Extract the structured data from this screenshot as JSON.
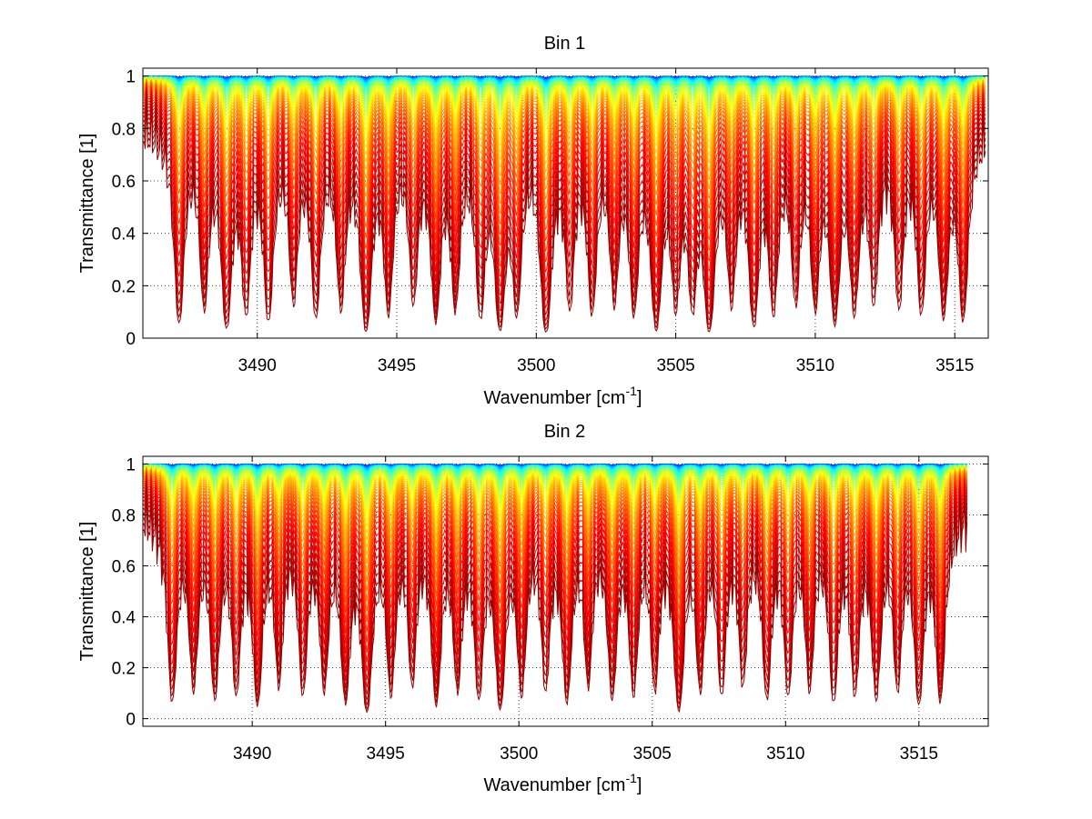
{
  "figure": {
    "colormap": "jet"
  },
  "chart_data": [
    {
      "type": "line",
      "title": "Bin 1",
      "xlabel": "Wavenumber [cm",
      "xlabel_sup": "-1",
      "xlabel_close": "]",
      "ylabel": "Transmittance [1]",
      "xlim": [
        3485.9,
        3516.2
      ],
      "ylim": [
        0,
        1.03
      ],
      "xticks": [
        3490,
        3495,
        3500,
        3505,
        3510,
        3515
      ],
      "yticks": [
        0,
        0.2,
        0.4,
        0.6,
        0.8,
        1
      ],
      "yticklabels": [
        "0",
        "0.2",
        "0.4",
        "0.6",
        "0.8",
        "1"
      ],
      "grid": true,
      "series_count": 60,
      "line_strength_range": [
        0.005,
        3.5
      ],
      "x_data_end": 3516.1,
      "absorption_lines_center": [
        3487.2,
        3488.1,
        3488.9,
        3489.6,
        3490.4,
        3491.3,
        3492.1,
        3493.0,
        3493.9,
        3494.7,
        3495.6,
        3496.4,
        3497.1,
        3498.0,
        3498.7,
        3499.3,
        3500.35,
        3501.2,
        3502.0,
        3502.8,
        3503.5,
        3504.3,
        3505.0,
        3505.6,
        3506.2,
        3507.0,
        3507.8,
        3508.5,
        3509.3,
        3510.0,
        3510.7,
        3511.4,
        3512.1,
        3513.0,
        3513.8,
        3514.6,
        3515.3
      ],
      "absorption_lines_depth": [
        0.75,
        0.55,
        0.85,
        0.6,
        0.7,
        0.5,
        0.65,
        0.55,
        0.95,
        0.6,
        0.5,
        0.7,
        0.55,
        0.65,
        0.9,
        0.6,
        1.0,
        0.55,
        0.6,
        0.5,
        0.6,
        0.9,
        0.55,
        0.55,
        0.95,
        0.5,
        0.8,
        0.6,
        0.5,
        0.55,
        0.75,
        0.6,
        0.5,
        0.55,
        0.6,
        0.65,
        0.7
      ]
    },
    {
      "type": "line",
      "title": "Bin 2",
      "xlabel": "Wavenumber [cm",
      "xlabel_sup": "-1",
      "xlabel_close": "]",
      "ylabel": "Transmittance [1]",
      "xlim": [
        3485.9,
        3517.6
      ],
      "ylim": [
        -0.03,
        1.03
      ],
      "xticks": [
        3490,
        3495,
        3500,
        3505,
        3510,
        3515
      ],
      "yticks": [
        0,
        0.2,
        0.4,
        0.6,
        0.8,
        1
      ],
      "yticklabels": [
        "0",
        "0.2",
        "0.4",
        "0.6",
        "0.8",
        "1"
      ],
      "grid": true,
      "series_count": 60,
      "line_strength_range": [
        0.005,
        3.5
      ],
      "x_data_end": 3516.8,
      "absorption_lines_center": [
        3487.0,
        3487.8,
        3488.6,
        3489.4,
        3490.2,
        3491.0,
        3491.9,
        3492.7,
        3493.5,
        3494.3,
        3495.2,
        3496.0,
        3496.9,
        3497.7,
        3498.5,
        3499.3,
        3500.1,
        3501.0,
        3501.8,
        3502.6,
        3503.5,
        3504.3,
        3505.1,
        3506.0,
        3506.8,
        3507.6,
        3508.4,
        3509.3,
        3510.1,
        3510.9,
        3511.8,
        3512.6,
        3513.4,
        3514.2,
        3515.0,
        3515.8
      ],
      "absorption_lines_depth": [
        0.7,
        0.55,
        0.65,
        0.6,
        0.75,
        0.5,
        0.6,
        0.55,
        0.7,
        0.95,
        0.6,
        0.5,
        0.75,
        0.55,
        0.65,
        0.85,
        0.6,
        0.55,
        0.7,
        0.5,
        0.65,
        0.6,
        0.55,
        0.9,
        0.55,
        0.6,
        0.5,
        0.65,
        0.6,
        0.55,
        0.7,
        0.6,
        0.65,
        0.55,
        0.75,
        0.7
      ]
    }
  ]
}
